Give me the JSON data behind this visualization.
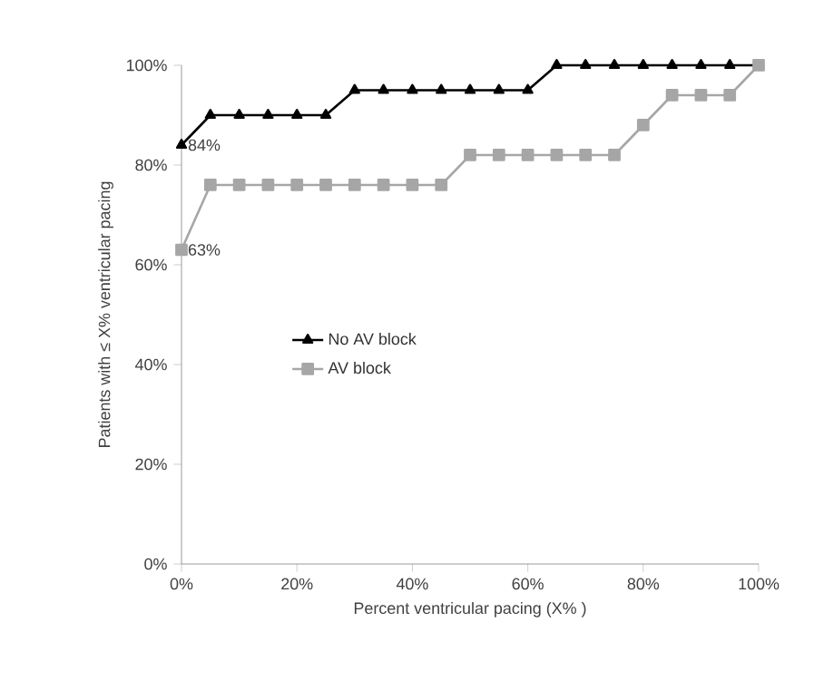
{
  "chart_data": {
    "type": "line",
    "xlabel": "Percent ventricular pacing (X% )",
    "ylabel": "Patients with ≤ X% ventricular pacing",
    "x": [
      0,
      5,
      10,
      15,
      20,
      25,
      30,
      35,
      40,
      45,
      50,
      55,
      60,
      65,
      70,
      75,
      80,
      85,
      90,
      95,
      100
    ],
    "series": [
      {
        "name": "No AV block",
        "color": "#000000",
        "marker": "triangle",
        "values": [
          84,
          90,
          90,
          90,
          90,
          90,
          95,
          95,
          95,
          95,
          95,
          95,
          95,
          100,
          100,
          100,
          100,
          100,
          100,
          100,
          100
        ]
      },
      {
        "name": "AV block",
        "color": "#a6a6a6",
        "marker": "square",
        "values": [
          63,
          76,
          76,
          76,
          76,
          76,
          76,
          76,
          76,
          76,
          82,
          82,
          82,
          82,
          82,
          82,
          88,
          94,
          94,
          94,
          100
        ]
      }
    ],
    "xlim": [
      0,
      100
    ],
    "ylim": [
      0,
      100
    ],
    "xticks": [
      {
        "value": 0,
        "label": "0%"
      },
      {
        "value": 20,
        "label": "20%"
      },
      {
        "value": 40,
        "label": "40%"
      },
      {
        "value": 60,
        "label": "60%"
      },
      {
        "value": 80,
        "label": "80%"
      },
      {
        "value": 100,
        "label": "100%"
      }
    ],
    "yticks": [
      {
        "value": 0,
        "label": "0%"
      },
      {
        "value": 20,
        "label": "20%"
      },
      {
        "value": 40,
        "label": "40%"
      },
      {
        "value": 60,
        "label": "60%"
      },
      {
        "value": 80,
        "label": "80%"
      },
      {
        "value": 100,
        "label": "100%"
      }
    ],
    "annotations": [
      {
        "text": "84%",
        "x": 0,
        "y": 84
      },
      {
        "text": "63%",
        "x": 0,
        "y": 63
      }
    ],
    "legend": "left",
    "grid": false
  }
}
